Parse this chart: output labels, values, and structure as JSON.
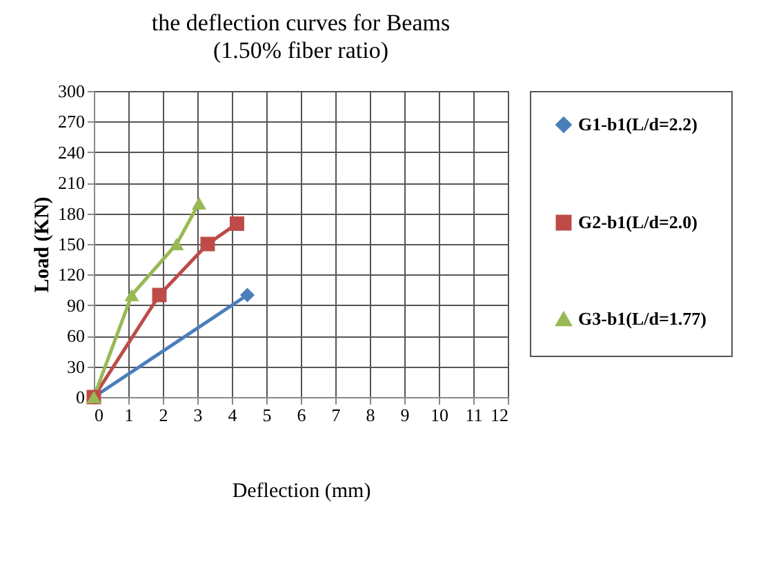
{
  "chart_data": {
    "type": "line",
    "title": "the deflection curves for Beams",
    "subtitle": "(1.50% fiber ratio)",
    "xlabel": "Deflection (mm)",
    "ylabel": "Load (KN)",
    "xlim": [
      0,
      12
    ],
    "xticks": [
      0,
      1,
      2,
      3,
      4,
      5,
      6,
      7,
      8,
      9,
      10,
      11,
      12
    ],
    "ylim": [
      0,
      300
    ],
    "yticks": [
      0,
      30,
      60,
      90,
      120,
      150,
      180,
      210,
      240,
      270,
      300
    ],
    "grid": true,
    "legend": "right",
    "series": [
      {
        "name": "G1-b1(L/d=2.2)",
        "color": "#4a7ebb",
        "marker": "diamond",
        "x": [
          0,
          4.45
        ],
        "values": [
          0,
          100
        ]
      },
      {
        "name": "G2-b1(L/d=2.0)",
        "color": "#be4b48",
        "marker": "square",
        "x": [
          0,
          1.9,
          3.3,
          4.15
        ],
        "values": [
          0,
          100,
          150,
          170
        ]
      },
      {
        "name": "G3-b1(L/d=1.77)",
        "color": "#98b954",
        "marker": "triangle",
        "x": [
          0,
          1.1,
          2.4,
          3.05
        ],
        "values": [
          0,
          100,
          150,
          190
        ]
      }
    ]
  }
}
